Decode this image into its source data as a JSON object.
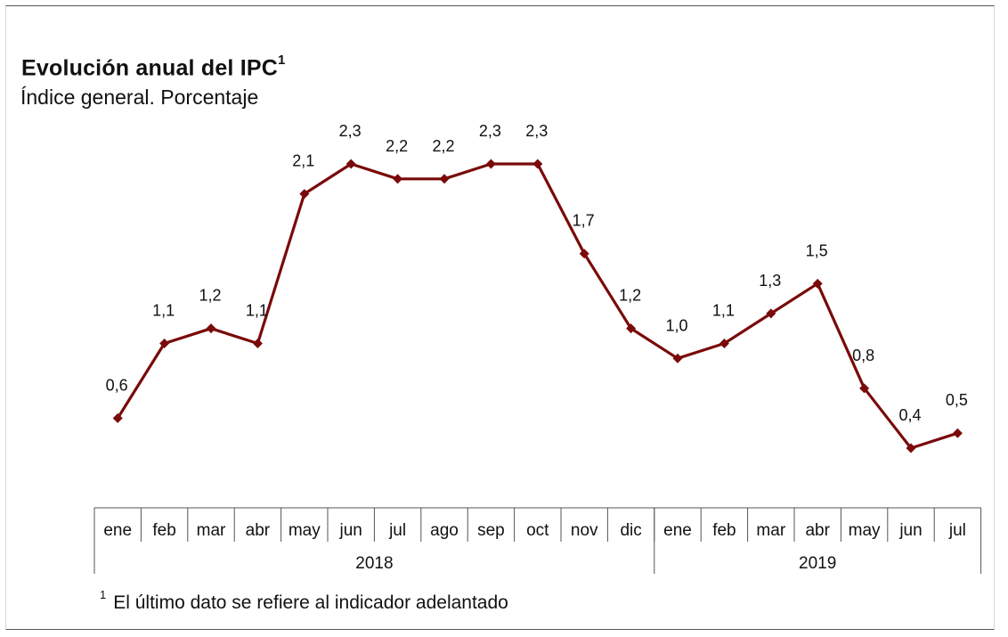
{
  "title": "Evolución anual del IPC",
  "title_sup": "1",
  "subtitle": "Índice general. Porcentaje",
  "footnote_sup": "1",
  "footnote": "El último dato se refiere al indicador adelantado",
  "colors": {
    "line": "#7a0a0a",
    "axis": "#555555"
  },
  "chart_data": {
    "type": "line",
    "title": "Evolución anual del IPC",
    "subtitle": "Índice general. Porcentaje",
    "categories": [
      "ene",
      "feb",
      "mar",
      "abr",
      "may",
      "jun",
      "jul",
      "ago",
      "sep",
      "oct",
      "nov",
      "dic",
      "ene",
      "feb",
      "mar",
      "abr",
      "may",
      "jun",
      "jul"
    ],
    "years": [
      {
        "label": "2018",
        "count": 12
      },
      {
        "label": "2019",
        "count": 7
      }
    ],
    "series": [
      {
        "name": "IPC",
        "values": [
          0.6,
          1.1,
          1.2,
          1.1,
          2.1,
          2.3,
          2.2,
          2.2,
          2.3,
          2.3,
          1.7,
          1.2,
          1.0,
          1.1,
          1.3,
          1.5,
          0.8,
          0.4,
          0.5
        ],
        "labels": [
          "0,6",
          "1,1",
          "1,2",
          "1,1",
          "2,1",
          "2,3",
          "2,2",
          "2,2",
          "2,3",
          "2,3",
          "1,7",
          "1,2",
          "1,0",
          "1,1",
          "1,3",
          "1,5",
          "0,8",
          "0,4",
          "0,5"
        ]
      }
    ],
    "xlabel": "",
    "ylabel": "",
    "ylim": [
      0.4,
      2.3
    ],
    "grid": false,
    "legend": "none"
  }
}
